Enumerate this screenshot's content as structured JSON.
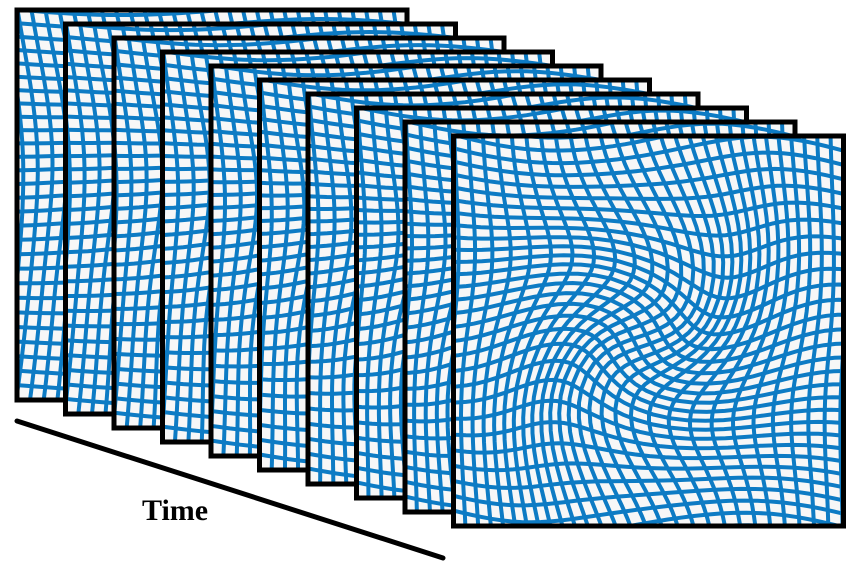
{
  "diagram": {
    "axis_label": "Time",
    "frame_count": 10,
    "grid_color": "#0d7bc4",
    "frame_border_color": "#000000",
    "frame_fill_color": "#f7f7f7"
  }
}
